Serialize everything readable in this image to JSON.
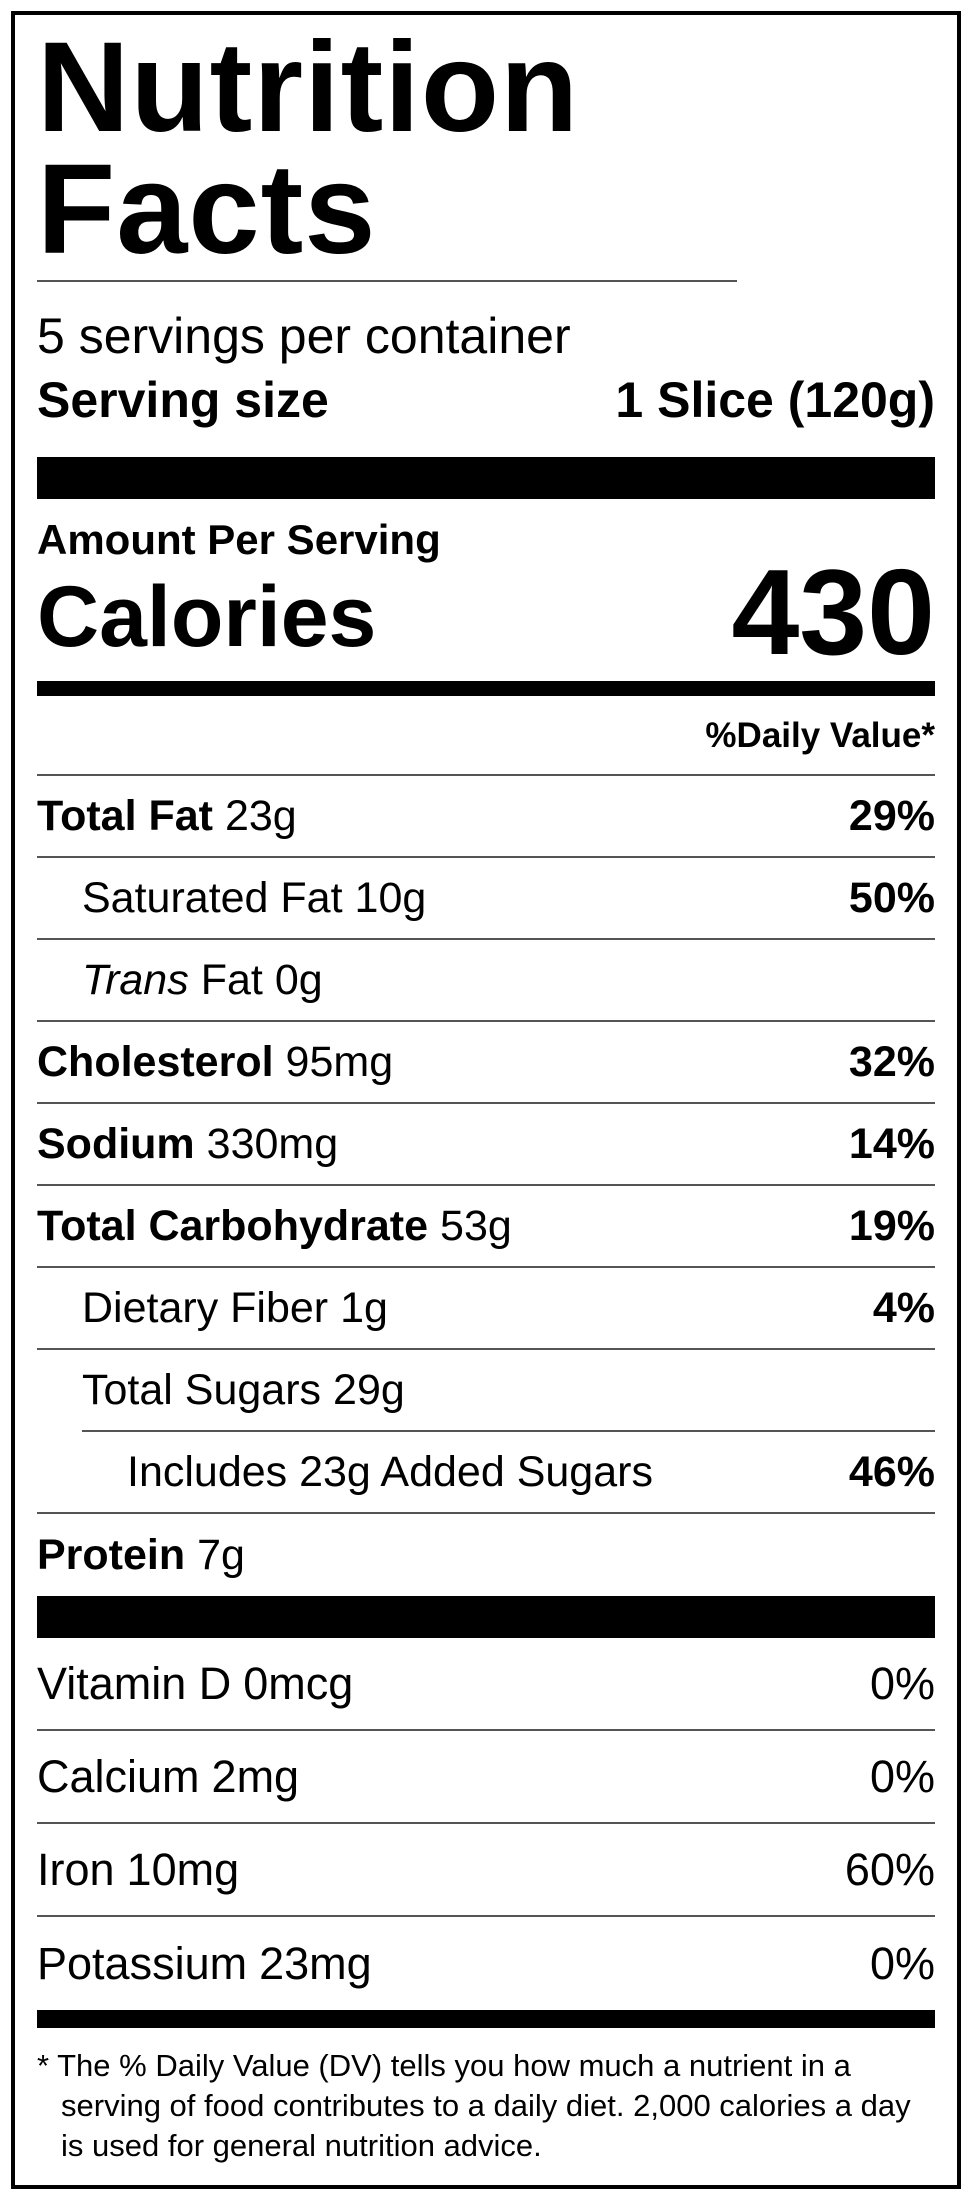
{
  "title": "Nutrition Facts",
  "servings_per_container": "5 servings per container",
  "serving_size": {
    "label": "Serving size",
    "value": "1 Slice (120g)"
  },
  "amount_per_serving": "Amount Per Serving",
  "calories": {
    "label": "Calories",
    "value": 430
  },
  "daily_value_header": "%Daily Value*",
  "nutrients": [
    {
      "name": "Total Fat",
      "amount": "23g",
      "daily_value": "29%"
    },
    {
      "name": "Saturated Fat",
      "amount": "10g",
      "daily_value": "50%"
    },
    {
      "name_italic": "Trans",
      "name": "Fat",
      "amount": "0g"
    },
    {
      "name": "Cholesterol",
      "amount": "95mg",
      "daily_value": "32%"
    },
    {
      "name": "Sodium",
      "amount": "330mg",
      "daily_value": "14%"
    },
    {
      "name": "Total Carbohydrate",
      "amount": "53g",
      "daily_value": "19%"
    },
    {
      "name": "Dietary Fiber",
      "amount": "1g",
      "daily_value": "4%"
    },
    {
      "name": "Total Sugars",
      "amount": "29g"
    },
    {
      "text": "Includes 23g Added Sugars",
      "daily_value": "46%"
    },
    {
      "name": "Protein",
      "amount": "7g"
    }
  ],
  "vitamins": [
    {
      "name": "Vitamin D",
      "amount": "0mcg",
      "daily_value": "0%"
    },
    {
      "name": "Calcium",
      "amount": "2mg",
      "daily_value": "0%"
    },
    {
      "name": "Iron",
      "amount": "10mg",
      "daily_value": "60%"
    },
    {
      "name": "Potassium",
      "amount": "23mg",
      "daily_value": "0%"
    }
  ],
  "footnote": "* The % Daily Value (DV) tells you how much a nutrient in a serving of food contributes to a daily diet. 2,000 calories a day is used for general nutrition advice."
}
